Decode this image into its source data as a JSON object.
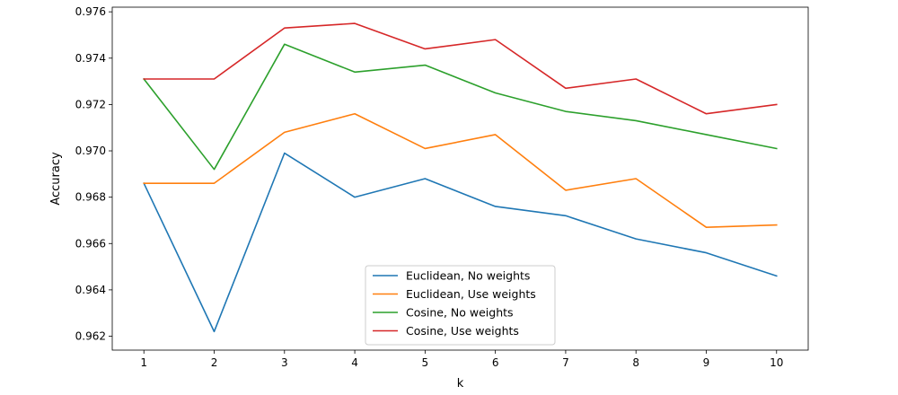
{
  "chart_data": {
    "type": "line",
    "title": "",
    "xlabel": "k",
    "ylabel": "Accuracy",
    "x": [
      1,
      2,
      3,
      4,
      5,
      6,
      7,
      8,
      9,
      10
    ],
    "xlim": [
      0.55,
      10.45
    ],
    "ylim": [
      0.9614,
      0.9762
    ],
    "yticks": [
      "0.962",
      "0.964",
      "0.966",
      "0.968",
      "0.970",
      "0.972",
      "0.974",
      "0.976"
    ],
    "xticks": [
      "1",
      "2",
      "3",
      "4",
      "5",
      "6",
      "7",
      "8",
      "9",
      "10"
    ],
    "grid": false,
    "legend_position": "lower center",
    "series": [
      {
        "name": "Euclidean, No weights",
        "color": "#1f77b4",
        "values": [
          0.9686,
          0.9622,
          0.9699,
          0.968,
          0.9688,
          0.9676,
          0.9672,
          0.9662,
          0.9656,
          0.9646
        ]
      },
      {
        "name": "Euclidean, Use weights",
        "color": "#ff7f0e",
        "values": [
          0.9686,
          0.9686,
          0.9708,
          0.9716,
          0.9701,
          0.9707,
          0.9683,
          0.9688,
          0.9667,
          0.9668
        ]
      },
      {
        "name": "Cosine, No weights",
        "color": "#2ca02c",
        "values": [
          0.9731,
          0.9692,
          0.9746,
          0.9734,
          0.9737,
          0.9725,
          0.9717,
          0.9713,
          0.9707,
          0.9701
        ]
      },
      {
        "name": "Cosine, Use weights",
        "color": "#d62728",
        "values": [
          0.9731,
          0.9731,
          0.9753,
          0.9755,
          0.9744,
          0.9748,
          0.9727,
          0.9731,
          0.9716,
          0.972
        ]
      }
    ]
  }
}
